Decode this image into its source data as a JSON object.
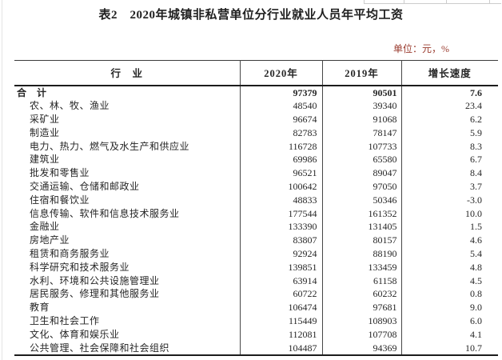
{
  "page_title": "表2　2020年城镇非私营单位分行业就业人员年平均工资",
  "unit_note": "单位：元，%",
  "colors": {
    "unit_note": "#9a3b2e",
    "table_border": "#1c1c1c",
    "text": "#262626"
  },
  "table": {
    "columns": [
      "行　业",
      "2020年",
      "2019年",
      "增长速度"
    ],
    "rows": [
      {
        "industry": "合　计",
        "y2020": "97379",
        "y2019": "90501",
        "growth": "7.6",
        "bold": true,
        "indent": false
      },
      {
        "industry": "农、林、牧、渔业",
        "y2020": "48540",
        "y2019": "39340",
        "growth": "23.4",
        "bold": false,
        "indent": true
      },
      {
        "industry": "采矿业",
        "y2020": "96674",
        "y2019": "91068",
        "growth": "6.2",
        "bold": false,
        "indent": true
      },
      {
        "industry": "制造业",
        "y2020": "82783",
        "y2019": "78147",
        "growth": "5.9",
        "bold": false,
        "indent": true
      },
      {
        "industry": "电力、热力、燃气及水生产和供应业",
        "y2020": "116728",
        "y2019": "107733",
        "growth": "8.3",
        "bold": false,
        "indent": true
      },
      {
        "industry": "建筑业",
        "y2020": "69986",
        "y2019": "65580",
        "growth": "6.7",
        "bold": false,
        "indent": true
      },
      {
        "industry": "批发和零售业",
        "y2020": "96521",
        "y2019": "89047",
        "growth": "8.4",
        "bold": false,
        "indent": true
      },
      {
        "industry": "交通运输、仓储和邮政业",
        "y2020": "100642",
        "y2019": "97050",
        "growth": "3.7",
        "bold": false,
        "indent": true
      },
      {
        "industry": "住宿和餐饮业",
        "y2020": "48833",
        "y2019": "50346",
        "growth": "-3.0",
        "bold": false,
        "indent": true
      },
      {
        "industry": "信息传输、软件和信息技术服务业",
        "y2020": "177544",
        "y2019": "161352",
        "growth": "10.0",
        "bold": false,
        "indent": true
      },
      {
        "industry": "金融业",
        "y2020": "133390",
        "y2019": "131405",
        "growth": "1.5",
        "bold": false,
        "indent": true
      },
      {
        "industry": "房地产业",
        "y2020": "83807",
        "y2019": "80157",
        "growth": "4.6",
        "bold": false,
        "indent": true
      },
      {
        "industry": "租赁和商务服务业",
        "y2020": "92924",
        "y2019": "88190",
        "growth": "5.4",
        "bold": false,
        "indent": true
      },
      {
        "industry": "科学研究和技术服务业",
        "y2020": "139851",
        "y2019": "133459",
        "growth": "4.8",
        "bold": false,
        "indent": true
      },
      {
        "industry": "水利、环境和公共设施管理业",
        "y2020": "63914",
        "y2019": "61158",
        "growth": "4.5",
        "bold": false,
        "indent": true
      },
      {
        "industry": "居民服务、修理和其他服务业",
        "y2020": "60722",
        "y2019": "60232",
        "growth": "0.8",
        "bold": false,
        "indent": true
      },
      {
        "industry": "教育",
        "y2020": "106474",
        "y2019": "97681",
        "growth": "9.0",
        "bold": false,
        "indent": true
      },
      {
        "industry": "卫生和社会工作",
        "y2020": "115449",
        "y2019": "108903",
        "growth": "6.0",
        "bold": false,
        "indent": true
      },
      {
        "industry": "文化、体育和娱乐业",
        "y2020": "112081",
        "y2019": "107708",
        "growth": "4.1",
        "bold": false,
        "indent": true
      },
      {
        "industry": "公共管理、社会保障和社会组织",
        "y2020": "104487",
        "y2019": "94369",
        "growth": "10.7",
        "bold": false,
        "indent": true
      }
    ]
  }
}
